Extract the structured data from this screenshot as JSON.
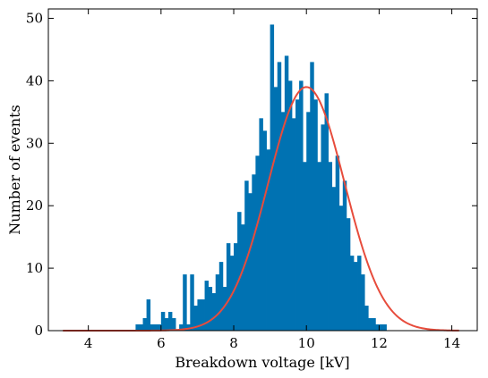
{
  "chart_data": {
    "type": "bar",
    "title": "",
    "xlabel": "Breakdown voltage [kV]",
    "ylabel": "Number of events",
    "xlim": [
      2.9,
      14.7
    ],
    "ylim": [
      0,
      51.5
    ],
    "xticks": [
      4,
      6,
      8,
      10,
      12,
      14
    ],
    "yticks": [
      0,
      10,
      20,
      30,
      40,
      50
    ],
    "grid": false,
    "legend": "none",
    "bin_width": 0.1,
    "bins": {
      "x_start": [
        5.3,
        5.4,
        5.5,
        5.6,
        5.7,
        5.8,
        5.9,
        6.0,
        6.1,
        6.2,
        6.3,
        6.4,
        6.5,
        6.6,
        6.7,
        6.8,
        6.9,
        7.0,
        7.1,
        7.2,
        7.3,
        7.4,
        7.5,
        7.6,
        7.7,
        7.8,
        7.9,
        8.0,
        8.1,
        8.2,
        8.3,
        8.4,
        8.5,
        8.6,
        8.7,
        8.8,
        8.9,
        9.0,
        9.1,
        9.2,
        9.3,
        9.4,
        9.5,
        9.6,
        9.7,
        9.8,
        9.9,
        10.0,
        10.1,
        10.2,
        10.3,
        10.4,
        10.5,
        10.6,
        10.7,
        10.8,
        10.9,
        11.0,
        11.1,
        11.2,
        11.3,
        11.4,
        11.5,
        11.6,
        11.7,
        11.8,
        11.9,
        12.0,
        12.1
      ],
      "counts": [
        1,
        1,
        2,
        5,
        1,
        1,
        1,
        3,
        2,
        3,
        2,
        0,
        1,
        9,
        1,
        9,
        4,
        5,
        5,
        8,
        7,
        6,
        9,
        11,
        7,
        14,
        12,
        14,
        19,
        17,
        24,
        22,
        25,
        28,
        34,
        32,
        29,
        49,
        39,
        43,
        35,
        44,
        40,
        34,
        37,
        40,
        27,
        35,
        43,
        37,
        27,
        33,
        38,
        27,
        23,
        28,
        20,
        24,
        18,
        12,
        11,
        12,
        9,
        4,
        2,
        2,
        1,
        1,
        1
      ]
    },
    "series": [
      {
        "type": "bar",
        "color": "#0072b2"
      },
      {
        "type": "line",
        "color": "#e74c3c",
        "model": "gaussian",
        "amplitude": 39,
        "mean": 10.0,
        "sigma": 1.05,
        "x_range": [
          3.3,
          14.2
        ]
      }
    ]
  }
}
